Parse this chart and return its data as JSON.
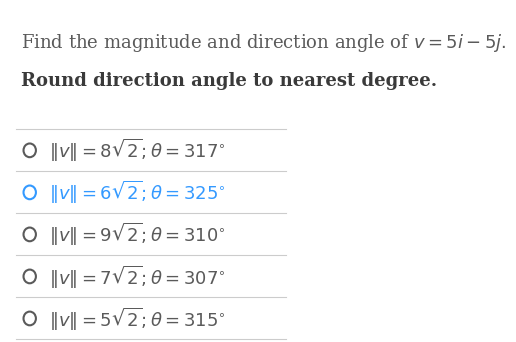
{
  "title_line1": "Find the magnitude and direction angle of $v = 5i - 5j.$",
  "title_line2": "Round direction angle to nearest degree.",
  "options": [
    {
      "text": "$\\|v\\| = 8\\sqrt{2}; \\theta = 317^{\\circ}$",
      "selected": false
    },
    {
      "text": "$\\|v\\| = 6\\sqrt{2}; \\theta = 325^{\\circ}$",
      "selected": true
    },
    {
      "text": "$\\|v\\| = 9\\sqrt{2}; \\theta = 310^{\\circ}$",
      "selected": false
    },
    {
      "text": "$\\|v\\| = 7\\sqrt{2}; \\theta = 307^{\\circ}$",
      "selected": false
    },
    {
      "text": "$\\|v\\| = 5\\sqrt{2}; \\theta = 315^{\\circ}$",
      "selected": false
    }
  ],
  "bg_color": "#ffffff",
  "text_color": "#5a5a5a",
  "title_color": "#5a5a5a",
  "subtitle_color": "#3a3a3a",
  "selected_color": "#3399ff",
  "line_color": "#cccccc",
  "option_fontsize": 13,
  "title_fontsize": 13,
  "subtitle_fontsize": 13
}
